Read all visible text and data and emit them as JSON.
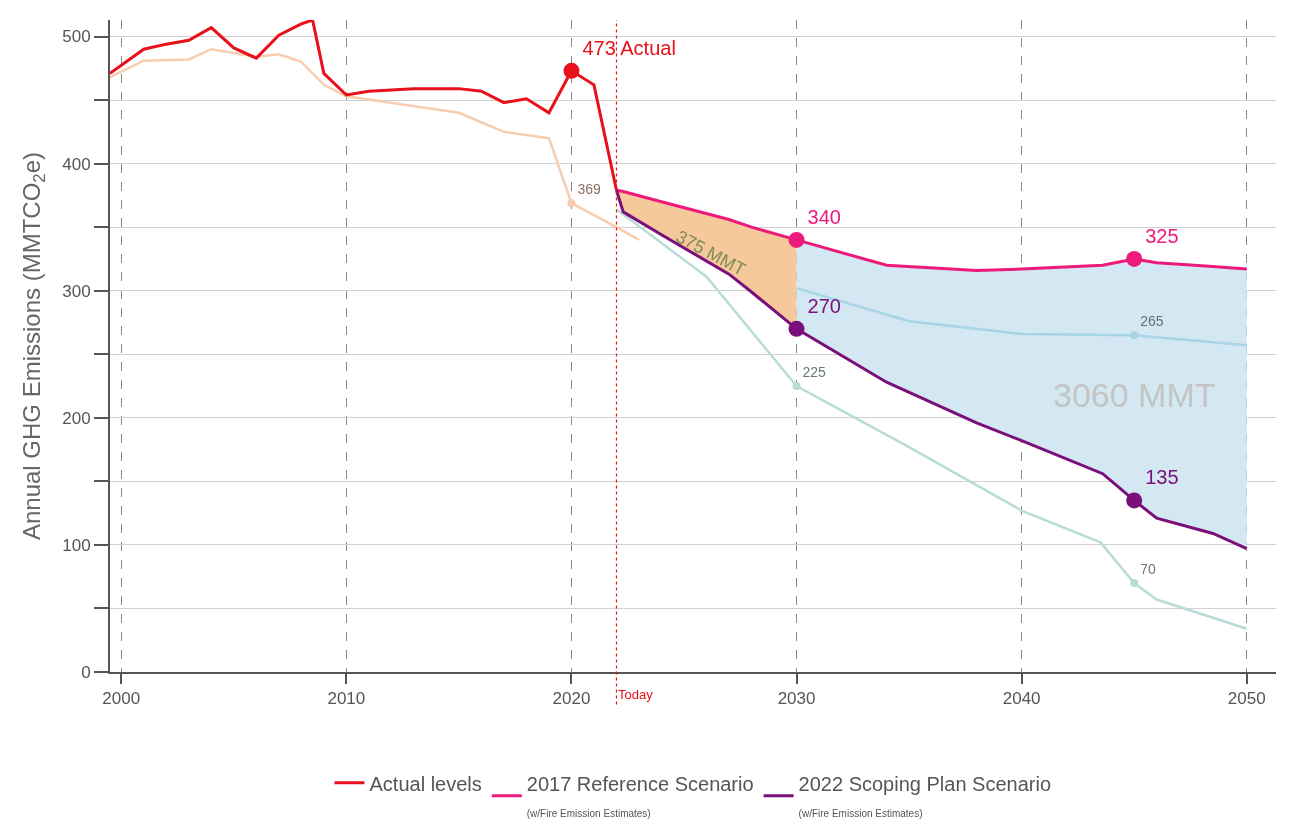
{
  "chart_data": {
    "type": "line",
    "ylabel": "Annual GHG Emissions (MMTCO$_{2}$e)",
    "xlim": [
      1999.5,
      2051.3
    ],
    "xticks": [
      2000,
      2010,
      2020,
      2030,
      2040,
      2050
    ],
    "ylim": [
      0,
      513
    ],
    "yticks": [
      0,
      {
        "value": 50,
        "label": null
      },
      100,
      {
        "value": 150,
        "label": null
      },
      200,
      {
        "value": 250,
        "label": null
      },
      300,
      {
        "value": 350,
        "label": null
      },
      400,
      {
        "value": 450,
        "label": null
      },
      500
    ],
    "grid": true,
    "legend": "bottom",
    "line_style": "solid",
    "series": [
      {
        "type": "area",
        "color": "#f5c99a",
        "x": [
          2022,
          2022.3,
          2024,
          2027,
          2028,
          2030
        ],
        "values": [
          null,
          null,
          null,
          null,
          null,
          null
        ],
        "upper": [
          379,
          378,
          370,
          356,
          350,
          340
        ],
        "lower": [
          379,
          362,
          344,
          313,
          299,
          270
        ]
      },
      {
        "type": "area",
        "color": "#d3e8f3",
        "x": [
          2030,
          2034,
          2038,
          2040,
          2043.6,
          2045,
          2046,
          2048.5,
          2050
        ],
        "values": [
          null,
          null,
          null,
          null,
          null,
          null,
          null,
          null,
          null
        ],
        "upper": [
          340,
          320,
          316,
          317,
          320,
          325,
          322,
          319,
          317
        ],
        "lower": [
          270,
          228,
          196,
          182,
          156,
          135,
          121,
          109,
          97
        ]
      },
      {
        "color": "#f7cdb0",
        "x": [
          1999.5,
          2001,
          2003,
          2004,
          2006,
          2007,
          2008,
          2009,
          2010,
          2015,
          2017,
          2019,
          2020,
          2022,
          2023
        ],
        "values": [
          468,
          481,
          482,
          490,
          484,
          486,
          480,
          462,
          453,
          440,
          425,
          420,
          369,
          350,
          340
        ],
        "value_labels": [
          null,
          null,
          null,
          null,
          null,
          null,
          null,
          null,
          null,
          null,
          null,
          null,
          "369",
          null,
          null
        ]
      },
      {
        "color": "#a8d4e6",
        "x": [
          2030,
          2035,
          2040,
          2045,
          2050
        ],
        "values": [
          302,
          276,
          266,
          265,
          257
        ],
        "value_labels": [
          null,
          null,
          null,
          "265",
          null
        ]
      },
      {
        "color": "#b8dcd8",
        "x": [
          2022,
          2026,
          2030,
          2035,
          2040,
          2043.5,
          2045,
          2046,
          2050
        ],
        "values": [
          364,
          311,
          225,
          177,
          127,
          102,
          70,
          57,
          34
        ],
        "value_labels": [
          null,
          null,
          "225",
          null,
          null,
          null,
          "70",
          null,
          null
        ]
      },
      {
        "name": "Actual levels",
        "color": "#e8101a",
        "x": [
          1999.5,
          2001,
          2002,
          2003,
          2004,
          2005,
          2006,
          2007,
          2008,
          2008.5,
          2009,
          2010,
          2011,
          2012,
          2013,
          2014,
          2015,
          2016,
          2017,
          2018,
          2019,
          2020,
          2021,
          2022
        ],
        "values": [
          471,
          490,
          494,
          497,
          507,
          491,
          483,
          501,
          510,
          513,
          471,
          454,
          457,
          458,
          459,
          459,
          459,
          457,
          448,
          451,
          440,
          473,
          462,
          379
        ],
        "value_labels": [
          null,
          null,
          null,
          null,
          null,
          null,
          null,
          null,
          null,
          null,
          null,
          null,
          null,
          null,
          null,
          null,
          null,
          null,
          null,
          null,
          null,
          "473 Actual",
          null,
          null
        ]
      },
      {
        "name": "2017 Reference Scenario\n(w/Fire Emission Estimates)",
        "color": "#ee1a7b",
        "x": [
          2022,
          2022.3,
          2024,
          2027,
          2028,
          2030,
          2034,
          2038,
          2040,
          2043.6,
          2045,
          2046,
          2048.5,
          2050
        ],
        "values": [
          379,
          378,
          370,
          356,
          350,
          340,
          320,
          316,
          317,
          320,
          325,
          322,
          319,
          317
        ],
        "value_labels": [
          null,
          null,
          null,
          null,
          null,
          "340",
          null,
          null,
          null,
          null,
          "325",
          null,
          null,
          null
        ]
      },
      {
        "name": "2022 Scoping Plan Scenario\n(w/Fire Emission Estimates)",
        "color": "#7a0f7a",
        "x": [
          2022,
          2022.3,
          2024,
          2027,
          2028,
          2030,
          2034,
          2038,
          2040,
          2043.6,
          2045,
          2046,
          2048.5,
          2050
        ],
        "values": [
          379,
          362,
          344,
          313,
          299,
          270,
          228,
          196,
          182,
          156,
          135,
          121,
          109,
          97
        ],
        "value_labels": [
          null,
          null,
          null,
          null,
          null,
          "270",
          null,
          null,
          null,
          null,
          "135",
          null,
          null,
          null
        ]
      }
    ],
    "ref_lines": [
      {
        "axis": "x",
        "value": 2022,
        "label": "Today",
        "color": "#e8101a",
        "line_style": "dotted"
      }
    ],
    "annotations": [
      "375 MMT",
      "3060 MMT"
    ]
  }
}
